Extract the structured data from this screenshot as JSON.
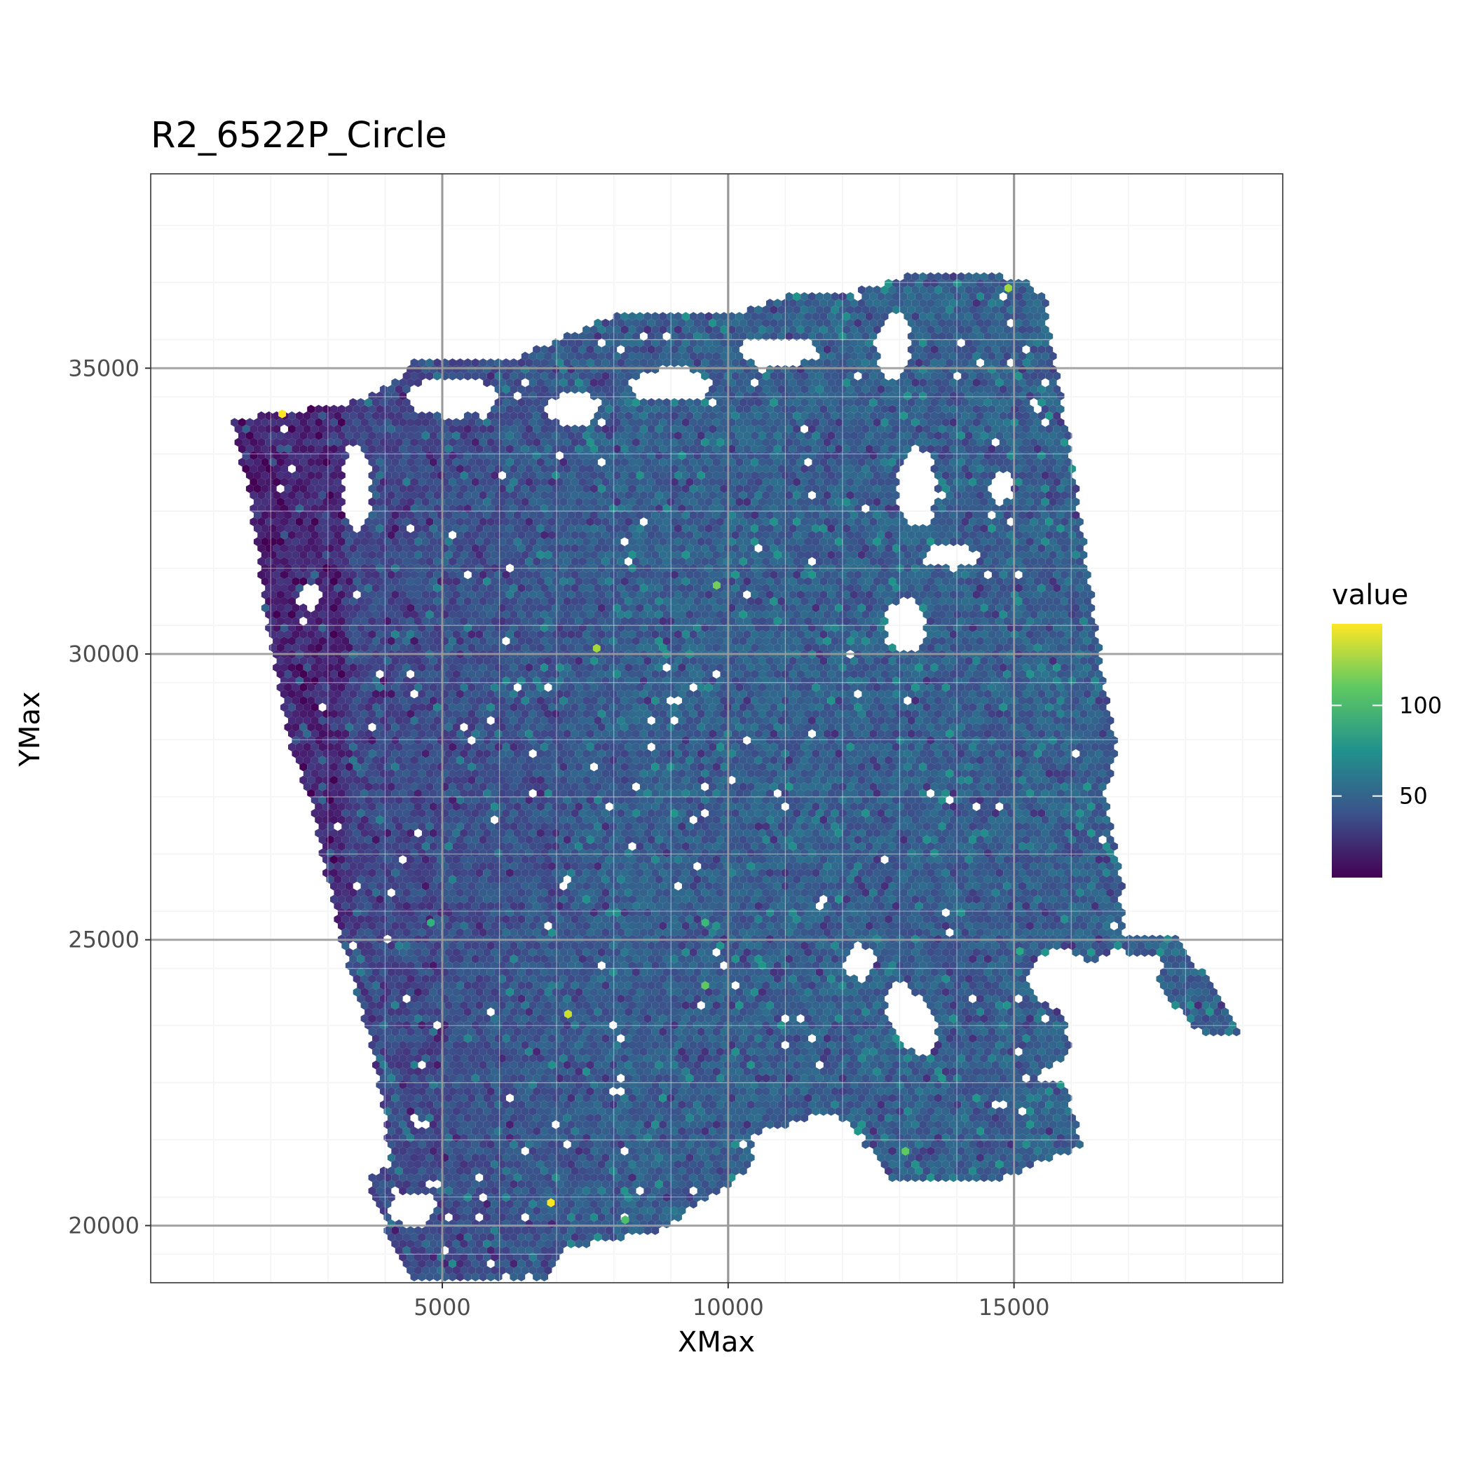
{
  "chart_data": {
    "type": "heatmap",
    "subtype": "hexbin",
    "title": "R2_6522P_Circle",
    "xlabel": "XMax",
    "ylabel": "YMax",
    "xlim": [
      -100,
      19700
    ],
    "ylim": [
      38400,
      19000
    ],
    "y_reversed": true,
    "xticks": [
      5000,
      10000,
      15000
    ],
    "xtick_labels": [
      "5000",
      "10000",
      "15000"
    ],
    "yticks": [
      20000,
      25000,
      30000,
      35000
    ],
    "ytick_labels": [
      "20000",
      "25000",
      "30000",
      "35000"
    ],
    "grid": true,
    "theme": "bw",
    "colorscale": "viridis",
    "value_range": [
      5,
      145
    ],
    "legend": {
      "title": "value",
      "ticks": [
        50,
        100
      ],
      "tick_labels": [
        "50",
        "100"
      ],
      "position": "right"
    },
    "tissue_outline": [
      [
        5100,
        18500
      ],
      [
        6300,
        18500
      ],
      [
        7200,
        19600
      ],
      [
        8800,
        19900
      ],
      [
        10400,
        21000
      ],
      [
        10400,
        21600
      ],
      [
        11900,
        22000
      ],
      [
        12900,
        20800
      ],
      [
        14700,
        20800
      ],
      [
        16200,
        21400
      ],
      [
        15900,
        22500
      ],
      [
        15300,
        22600
      ],
      [
        16000,
        23000
      ],
      [
        15800,
        24200
      ],
      [
        16900,
        24900
      ],
      [
        18200,
        23400
      ],
      [
        19000,
        23300
      ],
      [
        18400,
        24300
      ],
      [
        17800,
        25100
      ],
      [
        16900,
        25000
      ],
      [
        16900,
        25900
      ],
      [
        16600,
        27500
      ],
      [
        16800,
        28400
      ],
      [
        16500,
        30000
      ],
      [
        16100,
        32800
      ],
      [
        15900,
        34200
      ],
      [
        15500,
        36400
      ],
      [
        14500,
        36700
      ],
      [
        13100,
        36600
      ],
      [
        12100,
        36300
      ],
      [
        11100,
        36300
      ],
      [
        9900,
        35900
      ],
      [
        8200,
        36000
      ],
      [
        6300,
        35200
      ],
      [
        4600,
        35200
      ],
      [
        4100,
        34700
      ],
      [
        3400,
        34400
      ],
      [
        1300,
        34100
      ],
      [
        1600,
        32900
      ],
      [
        1800,
        31700
      ],
      [
        1900,
        30700
      ],
      [
        2400,
        28200
      ],
      [
        2700,
        27400
      ],
      [
        3200,
        25100
      ],
      [
        3800,
        23000
      ],
      [
        4100,
        21100
      ],
      [
        3700,
        20800
      ],
      [
        4200,
        19400
      ]
    ],
    "empty_regions": [
      {
        "type": "ellipse",
        "center": [
          4500,
          20300
        ],
        "radii": [
          400,
          300
        ]
      },
      {
        "type": "ellipse",
        "center": [
          13200,
          23600
        ],
        "radii": [
          350,
          700
        ],
        "rotation": 30
      },
      {
        "type": "ellipse",
        "center": [
          15800,
          24300
        ],
        "radii": [
          550,
          500
        ]
      },
      {
        "type": "ellipse",
        "center": [
          17300,
          24500
        ],
        "radii": [
          300,
          250
        ]
      },
      {
        "type": "ellipse",
        "center": [
          12300,
          24600
        ],
        "radii": [
          250,
          300
        ]
      },
      {
        "type": "ellipse",
        "center": [
          13100,
          30500
        ],
        "radii": [
          350,
          450
        ]
      },
      {
        "type": "ellipse",
        "center": [
          13900,
          31700
        ],
        "radii": [
          500,
          200
        ]
      },
      {
        "type": "ellipse",
        "center": [
          13300,
          32900
        ],
        "radii": [
          350,
          700
        ]
      },
      {
        "type": "ellipse",
        "center": [
          14800,
          32900
        ],
        "radii": [
          200,
          250
        ]
      },
      {
        "type": "ellipse",
        "center": [
          2700,
          31000
        ],
        "radii": [
          220,
          200
        ]
      },
      {
        "type": "ellipse",
        "center": [
          3500,
          32900
        ],
        "radii": [
          250,
          800
        ]
      },
      {
        "type": "ellipse",
        "center": [
          5200,
          34500
        ],
        "radii": [
          800,
          350
        ]
      },
      {
        "type": "ellipse",
        "center": [
          7300,
          34300
        ],
        "radii": [
          450,
          300
        ]
      },
      {
        "type": "ellipse",
        "center": [
          9000,
          34700
        ],
        "radii": [
          700,
          300
        ]
      },
      {
        "type": "ellipse",
        "center": [
          10900,
          35300
        ],
        "radii": [
          700,
          250
        ]
      },
      {
        "type": "ellipse",
        "center": [
          12900,
          35400
        ],
        "radii": [
          300,
          600
        ]
      }
    ],
    "highlights": [
      {
        "x": 6900,
        "y": 20400,
        "value": 145
      },
      {
        "x": 7200,
        "y": 23700,
        "value": 135
      },
      {
        "x": 2200,
        "y": 34200,
        "value": 145
      },
      {
        "x": 14900,
        "y": 36400,
        "value": 125
      },
      {
        "x": 7700,
        "y": 30100,
        "value": 125
      },
      {
        "x": 9800,
        "y": 31200,
        "value": 115
      },
      {
        "x": 13100,
        "y": 21300,
        "value": 110
      },
      {
        "x": 9600,
        "y": 24200,
        "value": 110
      },
      {
        "x": 8200,
        "y": 20100,
        "value": 105
      },
      {
        "x": 9600,
        "y": 25300,
        "value": 100
      },
      {
        "x": 4800,
        "y": 25300,
        "value": 95
      },
      {
        "x": 15100,
        "y": 24800,
        "value": 90
      }
    ]
  }
}
